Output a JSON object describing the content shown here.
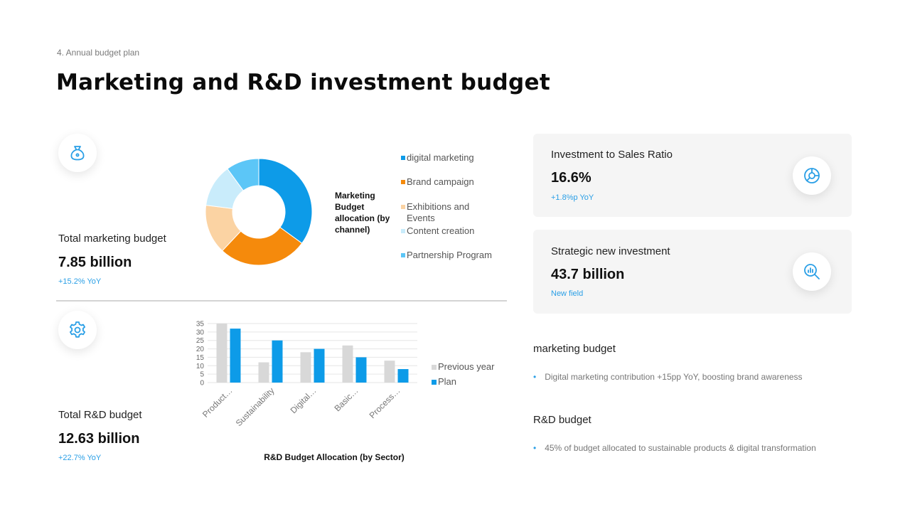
{
  "header": {
    "section_label": "4. Annual budget plan",
    "title": "Marketing and R&D investment budget"
  },
  "marketing": {
    "icon": "money-bag-icon",
    "label": "Total marketing budget",
    "value": "7.85 billion",
    "delta": "+15.2% YoY"
  },
  "rnd": {
    "icon": "gear-icon",
    "label": "Total R&D budget",
    "value": "12.63 billion",
    "delta": "+22.7% YoY"
  },
  "cards": [
    {
      "label": "Investment to Sales Ratio",
      "value": "16.6%",
      "delta": "+1.8%p YoY",
      "icon": "pie-chart-icon"
    },
    {
      "label": "Strategic new investment",
      "value": "43.7 billion",
      "delta": "New field",
      "icon": "magnify-chart-icon"
    }
  ],
  "notes": [
    {
      "heading": "marketing budget",
      "bullet": "Digital marketing contribution +15pp YoY, boosting brand awareness"
    },
    {
      "heading": "R&D budget",
      "bullet": "45% of budget allocated to sustainable products & digital transformation"
    }
  ],
  "colors": {
    "accent": "#2a9fe6",
    "digital_marketing": "#0d9be8",
    "brand_campaign": "#f58a0c",
    "exhibitions": "#fbd3a3",
    "content_creation": "#c9ecfb",
    "partnership": "#5cc6f7",
    "previous_year": "#d8d8d8",
    "plan": "#0d9be8"
  },
  "chart_data": [
    {
      "type": "pie",
      "title": "Marketing Budget allocation (by channel)",
      "categories": [
        "digital marketing",
        "Brand campaign",
        "Exhibitions and Events",
        "Content creation",
        "Partnership Program"
      ],
      "values": [
        35,
        27,
        15,
        13,
        10
      ],
      "donut": true,
      "legend": "right"
    },
    {
      "type": "bar",
      "title": "R&D Budget Allocation (by Sector)",
      "categories": [
        "Product…",
        "Sustainability",
        "Digital…",
        "Basic…",
        "Process…"
      ],
      "series": [
        {
          "name": "Previous year",
          "values": [
            35,
            12,
            18,
            22,
            13
          ]
        },
        {
          "name": "Plan",
          "values": [
            32,
            25,
            20,
            15,
            8
          ]
        }
      ],
      "yticks": [
        "0",
        "5",
        "10",
        "15",
        "20",
        "25",
        "30",
        "35"
      ],
      "ylim": [
        0,
        35
      ],
      "grid": true,
      "legend": "right"
    }
  ]
}
